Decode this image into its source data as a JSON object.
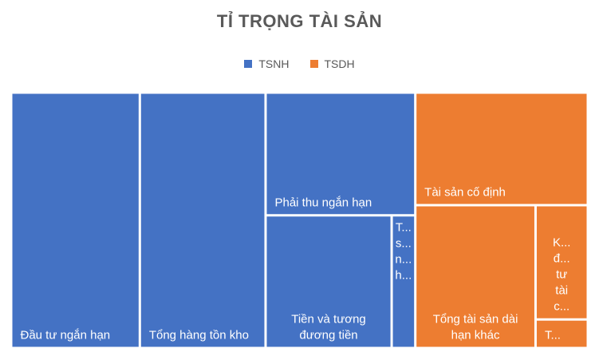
{
  "chart_data": {
    "type": "treemap",
    "title": "TỈ TRỌNG TÀI SẢN",
    "legend_position": "top",
    "groups": [
      {
        "name": "TSNH",
        "color": "#4472C4",
        "items": [
          {
            "label": "Đầu tư ngắn hạn",
            "lines": [
              "Đầu tư ngắn hạn"
            ],
            "value": 22.0
          },
          {
            "label": "Tổng hàng tồn kho",
            "lines": [
              "Tổng hàng tồn kho"
            ],
            "value": 21.5
          },
          {
            "label": "Phải thu ngắn hạn",
            "lines": [
              "Phải thu ngắn hạn"
            ],
            "value": 12.3
          },
          {
            "label": "Tiền và tương đương tiền",
            "lines": [
              "Tiền và tương",
              "đương tiền"
            ],
            "value": 11.2
          },
          {
            "label": "T... s... n... h...",
            "lines": [
              "T...",
              "s...",
              "n...",
              "h..."
            ],
            "value": 2.1
          }
        ]
      },
      {
        "name": "TSDH",
        "color": "#ED7D31",
        "items": [
          {
            "label": "Tài sản cố định",
            "lines": [
              "Tài sản cố định"
            ],
            "value": 13.0
          },
          {
            "label": "Tổng tài sản dài hạn khác",
            "lines": [
              "Tổng tài sản dài",
              "hạn khác"
            ],
            "value": 11.5
          },
          {
            "label": "K... đ... tư tài c...",
            "lines": [
              "K...",
              "đ...",
              "tư",
              "tài",
              "c..."
            ],
            "value": 4.0
          },
          {
            "label": "T...",
            "lines": [
              "T..."
            ],
            "value": 1.0
          }
        ]
      }
    ]
  }
}
